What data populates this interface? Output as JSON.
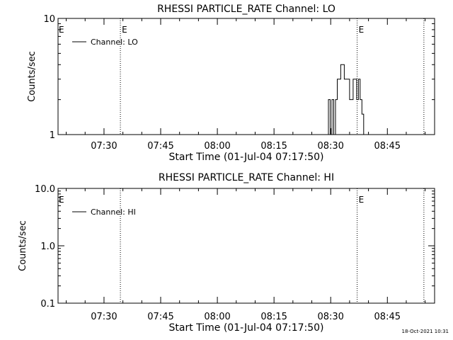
{
  "footer": {
    "timestamp": "18-Oct-2021 10:31"
  },
  "chart_data": [
    {
      "type": "line",
      "title": "RHESSI PARTICLE_RATE Channel: LO",
      "xlabel": "Start Time (01-Jul-04 07:17:50)",
      "ylabel": "Counts/sec",
      "yscale": "log",
      "ylim": [
        1,
        10
      ],
      "xlim": [
        "07:17:50",
        "08:57:30"
      ],
      "x_ticks": [
        "07:30",
        "07:45",
        "08:00",
        "08:15",
        "08:30",
        "08:45"
      ],
      "y_ticks": [
        {
          "value": 1,
          "label": "1"
        },
        {
          "value": 10,
          "label": "10"
        }
      ],
      "legend": {
        "position": "top-left",
        "entries": [
          "Channel: LO"
        ]
      },
      "event_markers": [
        {
          "time": "07:34:20",
          "label": "E"
        },
        {
          "time": "08:37:00",
          "label": "E"
        },
        {
          "time": "08:54:40",
          "label": ""
        }
      ],
      "left_edge_label": "E",
      "series": [
        {
          "name": "Channel: LO",
          "x": [
            "08:29:24",
            "08:29:24",
            "08:29:52",
            "08:29:52",
            "08:30:20",
            "08:30:20",
            "08:30:48",
            "08:30:48",
            "08:31:16",
            "08:31:16",
            "08:31:44",
            "08:31:44",
            "08:32:40",
            "08:32:40",
            "08:33:36",
            "08:33:36",
            "08:34:32",
            "08:34:32",
            "08:35:00",
            "08:35:00",
            "08:35:56",
            "08:35:56",
            "08:36:52",
            "08:36:52",
            "08:37:20",
            "08:37:20",
            "08:37:48",
            "08:37:48",
            "08:38:16",
            "08:38:16",
            "08:38:44",
            "08:38:44"
          ],
          "values": [
            1,
            2,
            2,
            1,
            1,
            2,
            2,
            1,
            1,
            2,
            2,
            3,
            3,
            4,
            4,
            3,
            3,
            3,
            3,
            2,
            2,
            3,
            3,
            2,
            2,
            3,
            3,
            2,
            2,
            1.5,
            1.5,
            1
          ]
        }
      ]
    },
    {
      "type": "line",
      "title": "RHESSI PARTICLE_RATE Channel: HI",
      "xlabel": "Start Time (01-Jul-04 07:17:50)",
      "ylabel": "Counts/sec",
      "yscale": "log",
      "ylim": [
        0.1,
        10
      ],
      "xlim": [
        "07:17:50",
        "08:57:30"
      ],
      "x_ticks": [
        "07:30",
        "07:45",
        "08:00",
        "08:15",
        "08:30",
        "08:45"
      ],
      "y_ticks": [
        {
          "value": 0.1,
          "label": "0.1"
        },
        {
          "value": 1,
          "label": "1.0"
        },
        {
          "value": 10,
          "label": "10.0"
        }
      ],
      "legend": {
        "position": "top-left",
        "entries": [
          "Channel: HI"
        ]
      },
      "event_markers": [
        {
          "time": "07:34:20",
          "label": ""
        },
        {
          "time": "08:37:00",
          "label": "E"
        },
        {
          "time": "08:54:40",
          "label": ""
        }
      ],
      "left_edge_label": "E",
      "series": [
        {
          "name": "Channel: HI",
          "x": [],
          "values": []
        }
      ]
    }
  ]
}
